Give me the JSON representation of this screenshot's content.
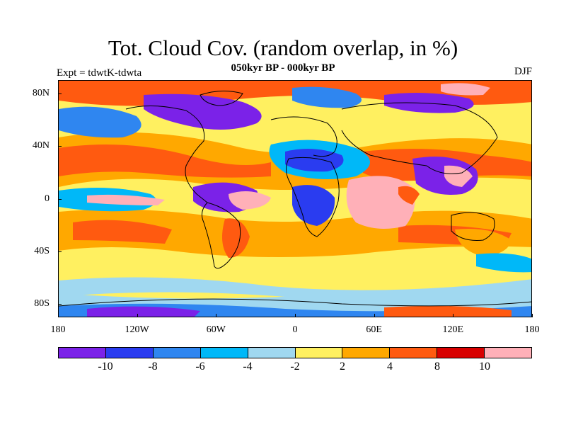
{
  "title": "Tot. Cloud Cov. (random overlap, in %)",
  "subtitle": "050kyr BP - 000kyr BP",
  "experiment_label": "Expt = tdwtK-tdwta",
  "season_label": "DJF",
  "map": {
    "y_ticks": [
      {
        "label": "80N",
        "lat": 80
      },
      {
        "label": "40N",
        "lat": 40
      },
      {
        "label": "0",
        "lat": 0
      },
      {
        "label": "40S",
        "lat": -40
      },
      {
        "label": "80S",
        "lat": -80
      }
    ],
    "x_ticks": [
      {
        "label": "180",
        "lon": -180
      },
      {
        "label": "120W",
        "lon": -120
      },
      {
        "label": "60W",
        "lon": -60
      },
      {
        "label": "0",
        "lon": 0
      },
      {
        "label": "60E",
        "lon": 60
      },
      {
        "label": "120E",
        "lon": 120
      },
      {
        "label": "180",
        "lon": 180
      }
    ]
  },
  "colorbar": {
    "colors": [
      "#7b22e8",
      "#2a3cf0",
      "#2f86f0",
      "#00b8f8",
      "#a0d8f0",
      "#fff060",
      "#ffa800",
      "#ff5a10",
      "#d80000",
      "#ffb0b8"
    ],
    "labels": [
      {
        "text": "-10",
        "index": 1
      },
      {
        "text": "-8",
        "index": 2
      },
      {
        "text": "-6",
        "index": 3
      },
      {
        "text": "-4",
        "index": 4
      },
      {
        "text": "-2",
        "index": 5
      },
      {
        "text": "2",
        "index": 6
      },
      {
        "text": "4",
        "index": 7
      },
      {
        "text": "8",
        "index": 8
      },
      {
        "text": "10",
        "index": 9
      }
    ]
  }
}
